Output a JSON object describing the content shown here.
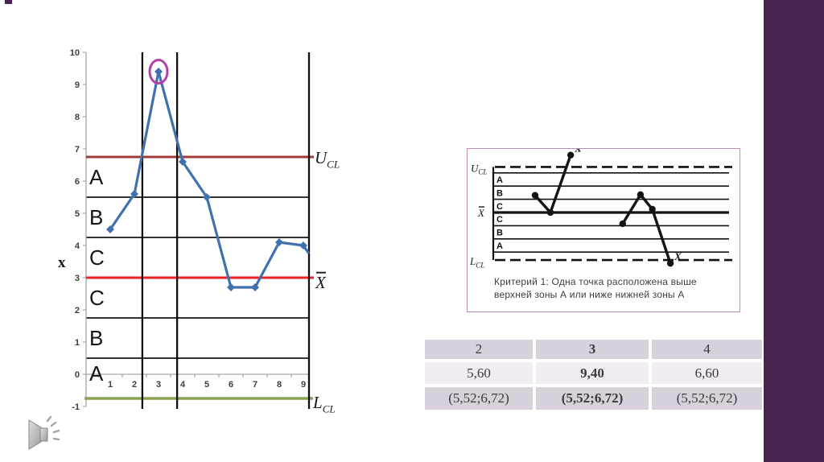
{
  "slide": {
    "background": "#FFFFFF",
    "accent_bar_color": "#4A2450",
    "corner_chip_color": "#4A2450"
  },
  "chart_data": [
    {
      "name": "x-control-chart",
      "type": "line",
      "title": "",
      "xlabel": "",
      "ylabel": "x",
      "x": [
        1,
        2,
        3,
        4,
        5,
        6,
        7,
        8,
        9
      ],
      "series": [
        {
          "name": "x",
          "color": "#4170AE",
          "values": [
            4.5,
            5.6,
            9.4,
            6.6,
            5.5,
            2.7,
            2.7,
            4.1,
            4.0
          ]
        }
      ],
      "partial_end_point": {
        "x": 9.23,
        "y": 3.75
      },
      "ylim": [
        -1,
        10
      ],
      "yticks": [
        -1,
        0,
        1,
        2,
        3,
        4,
        5,
        6,
        7,
        8,
        9,
        10
      ],
      "xticks": [
        1,
        2,
        3,
        4,
        5,
        6,
        7,
        8,
        9
      ],
      "grid": false,
      "legend": "none",
      "control_lines": [
        {
          "id": "ucl",
          "label": "UCL",
          "value": 6.75,
          "color": "#9E3B38"
        },
        {
          "id": "center",
          "label": "X̄",
          "value": 3,
          "color": "#EE2024"
        },
        {
          "id": "lcl",
          "label": "LCL",
          "value": -0.75,
          "color": "#8CA051"
        }
      ],
      "zone_boundaries": [
        6.75,
        5.5,
        4.25,
        3,
        1.75,
        0.5,
        -0.75
      ],
      "zone_labels": [
        "A",
        "B",
        "C",
        "C",
        "B",
        "A"
      ],
      "vertical_markers_x": [
        2.33,
        3.77
      ],
      "highlight_point": {
        "x": 3,
        "y": 9.4,
        "ring_color": "#B23FA6"
      }
    },
    {
      "name": "criterion-1-inset",
      "type": "line",
      "zone_labels": [
        "A",
        "B",
        "C",
        "C",
        "B",
        "A"
      ],
      "left_labels": [
        "UCL",
        "X̄",
        "LCL"
      ],
      "outlier_label": "X",
      "series": [
        {
          "points_zone_units": [
            [
              1.55,
              1.3
            ],
            [
              2.12,
              0.0
            ],
            [
              2.87,
              4.35
            ]
          ],
          "outlier_index": 2
        },
        {
          "points_zone_units": [
            [
              4.8,
              -0.85
            ],
            [
              5.46,
              1.35
            ],
            [
              5.9,
              0.25
            ],
            [
              6.57,
              -3.85
            ]
          ],
          "outlier_index": 3
        }
      ],
      "caption": "Критерий 1: Одна точка расположена выше верхней зоны А или ниже нижней зоны А"
    }
  ],
  "table": {
    "header": [
      "2",
      "3",
      "4"
    ],
    "rows": [
      [
        "5,60",
        "9,40",
        "6,60"
      ],
      [
        "(5,52;6,72)",
        "(5,52;6,72)",
        "(5,52;6,72)"
      ]
    ],
    "bold_column_index": 1,
    "header_bg": "#D8D0DA",
    "row_bgs": [
      "#F1EDF3",
      "#D8D0DA"
    ],
    "text_color": "#3A3A3A"
  },
  "audio": {
    "name": "speaker-icon"
  }
}
